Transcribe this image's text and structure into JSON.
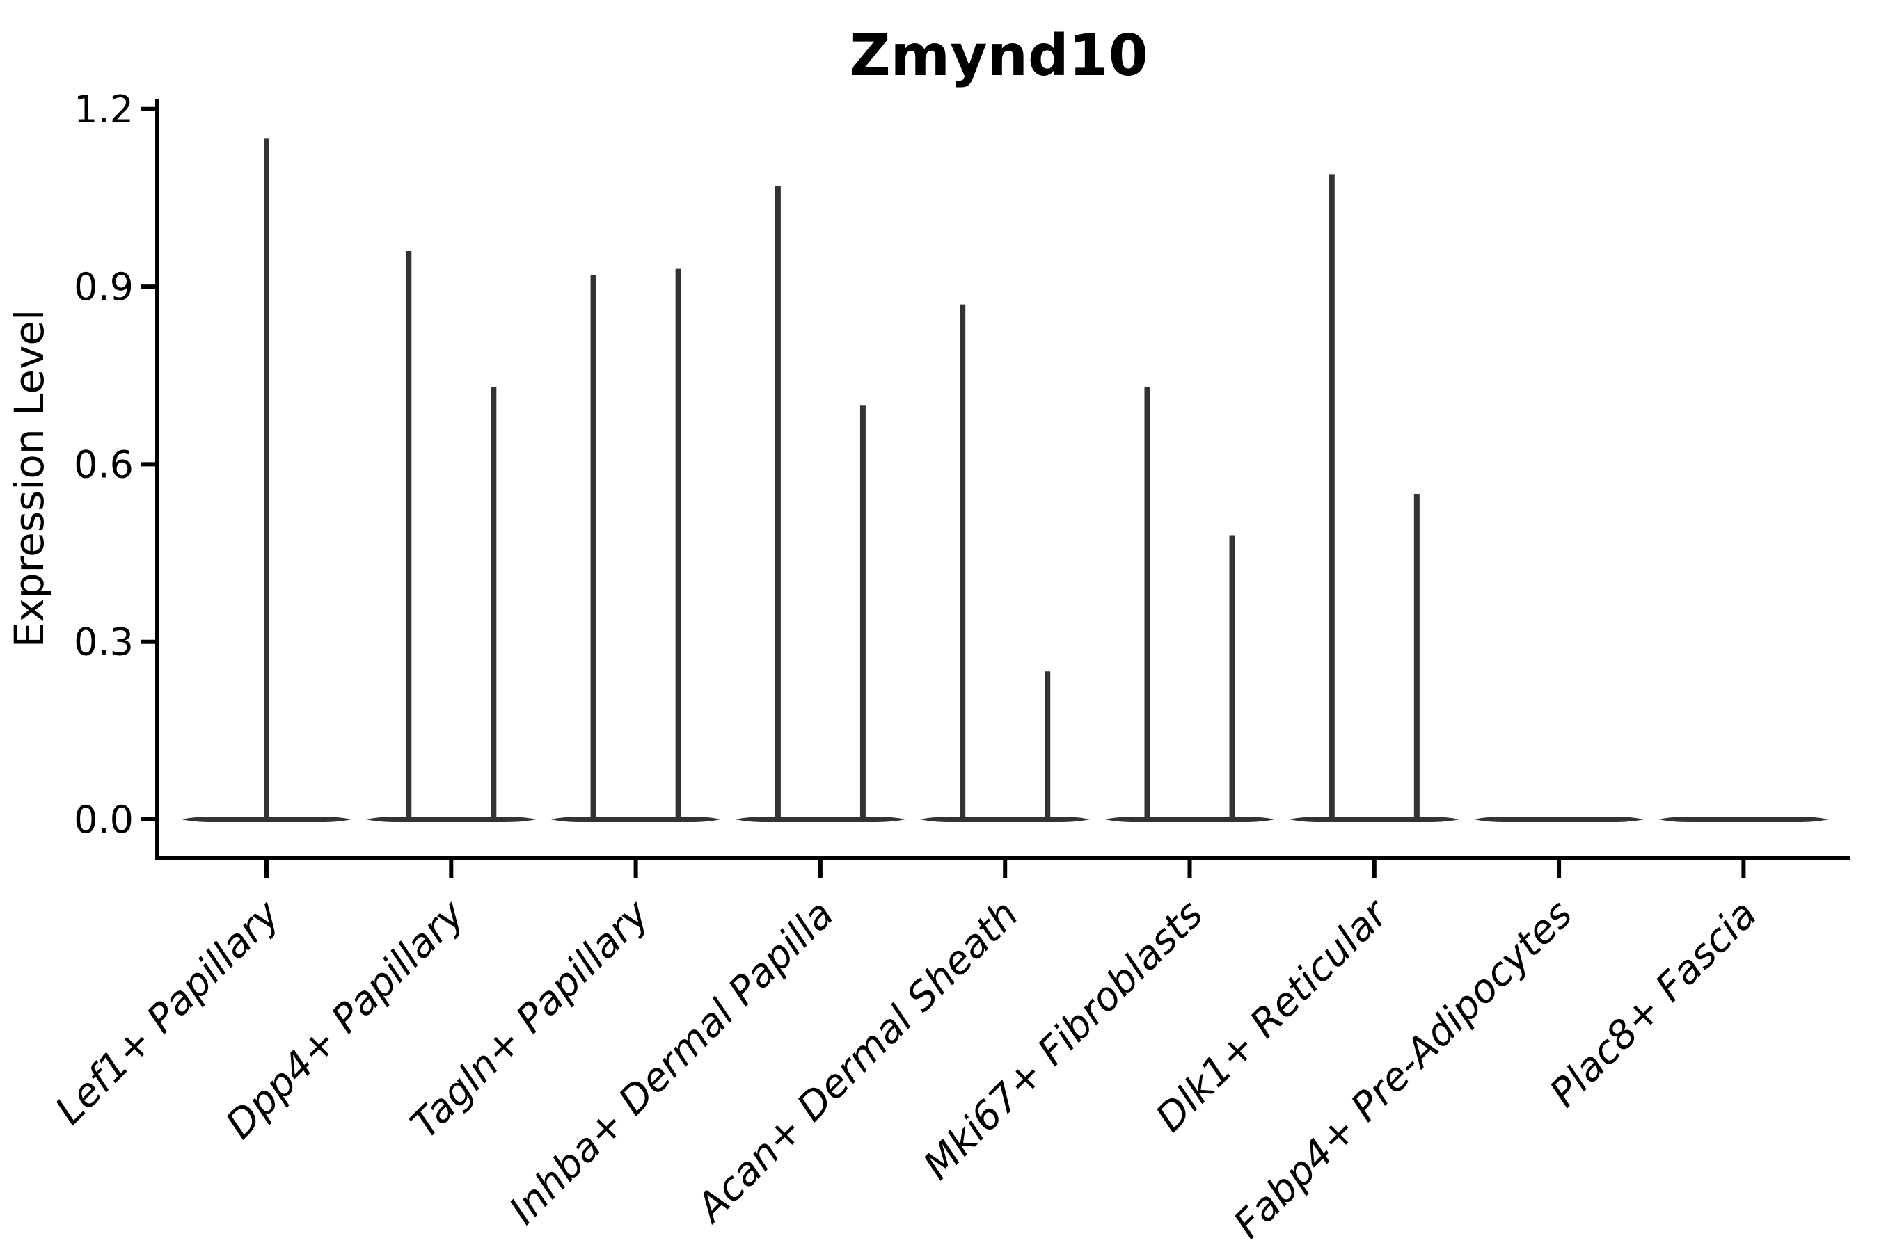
{
  "chart_data": {
    "type": "violin",
    "title": "Zmynd10",
    "xlabel": "",
    "ylabel": "Expression Level",
    "ytick_labels": [
      "0.0",
      "0.3",
      "0.6",
      "0.9",
      "1.2"
    ],
    "ytick_values": [
      0.0,
      0.3,
      0.6,
      0.9,
      1.2
    ],
    "ylim": [
      -0.066,
      1.213
    ],
    "grid": false,
    "legend": null,
    "categories": [
      "Lef1+ Papillary",
      "Dpp4+ Papillary",
      "Tagln+ Papillary",
      "Inhba+ Dermal Papilla",
      "Acan+ Dermal Sheath",
      "Mki67+ Fibroblasts",
      "Dlk1+ Reticular",
      "Fabp4+ Pre-Adipocytes",
      "Plac8+ Fascia"
    ],
    "violins": [
      {
        "category": "Lef1+ Papillary",
        "spikes": [
          {
            "offset": 0.0,
            "max": 1.15
          }
        ]
      },
      {
        "category": "Dpp4+ Papillary",
        "spikes": [
          {
            "offset": -0.23,
            "max": 0.96
          },
          {
            "offset": 0.23,
            "max": 0.73
          }
        ]
      },
      {
        "category": "Tagln+ Papillary",
        "spikes": [
          {
            "offset": -0.23,
            "max": 0.92
          },
          {
            "offset": 0.23,
            "max": 0.93
          }
        ]
      },
      {
        "category": "Inhba+ Dermal Papilla",
        "spikes": [
          {
            "offset": -0.23,
            "max": 1.07
          },
          {
            "offset": 0.23,
            "max": 0.7
          }
        ]
      },
      {
        "category": "Acan+ Dermal Sheath",
        "spikes": [
          {
            "offset": -0.23,
            "max": 0.87
          },
          {
            "offset": 0.23,
            "max": 0.25
          }
        ]
      },
      {
        "category": "Mki67+ Fibroblasts",
        "spikes": [
          {
            "offset": -0.23,
            "max": 0.73
          },
          {
            "offset": 0.23,
            "max": 0.48
          }
        ]
      },
      {
        "category": "Dlk1+ Reticular",
        "spikes": [
          {
            "offset": -0.23,
            "max": 1.09
          },
          {
            "offset": 0.23,
            "max": 0.55
          }
        ]
      },
      {
        "category": "Fabp4+ Pre-Adipocytes",
        "spikes": []
      },
      {
        "category": "Plac8+ Fascia",
        "spikes": []
      }
    ],
    "base_half_width_units": 0.46,
    "colors": {
      "violin": "#333333",
      "axis": "#000000",
      "text": "#000000",
      "background": "#ffffff"
    }
  }
}
